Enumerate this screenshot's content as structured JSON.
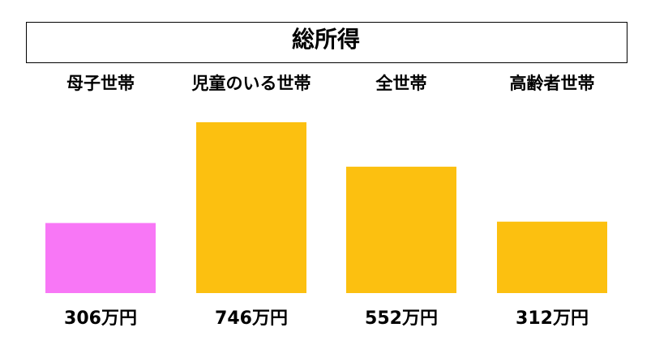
{
  "chart_data": {
    "type": "bar",
    "title": "総所得",
    "categories": [
      "母子世帯",
      "児童のいる世帯",
      "全世帯",
      "高齢者世帯"
    ],
    "values": [
      306,
      746,
      552,
      312
    ],
    "value_labels": [
      "306万円",
      "746万円",
      "552万円",
      "312万円"
    ],
    "colors": [
      "#f877f6",
      "#fcc010",
      "#fcc010",
      "#fcc010"
    ]
  }
}
